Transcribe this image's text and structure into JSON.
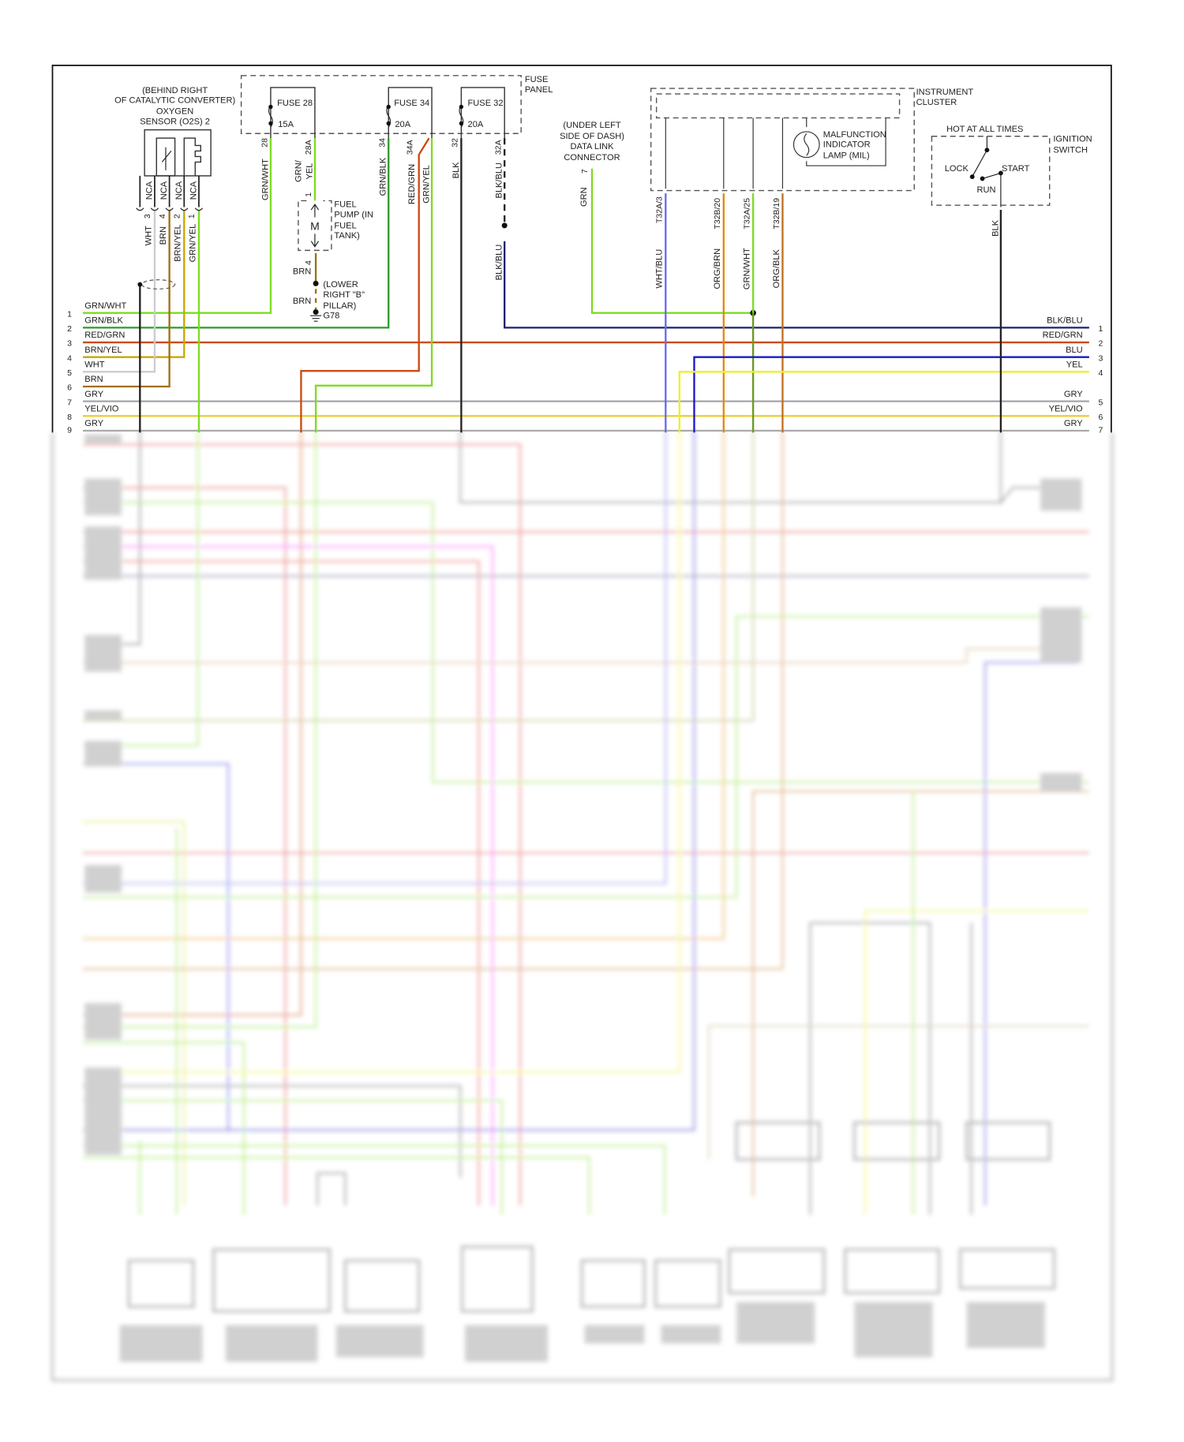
{
  "oxygen_sensor": {
    "location": "(BEHIND RIGHT",
    "location2": "OF CATALYTIC CONVERTER)",
    "name1": "OXYGEN",
    "name2": "SENSOR (O2S) 2",
    "pins": [
      {
        "nca": "NCA",
        "pin": "3",
        "wire": "WHT"
      },
      {
        "nca": "NCA",
        "pin": "4",
        "wire": "BRN"
      },
      {
        "nca": "NCA",
        "pin": "2",
        "wire": "BRN/YEL"
      },
      {
        "nca": "NCA",
        "pin": "1",
        "wire": "GRN/YEL"
      }
    ]
  },
  "fuse_panel": {
    "label1": "FUSE",
    "label2": "PANEL",
    "fuses": [
      {
        "name": "FUSE 28",
        "rating": "15A",
        "in_pin": "28",
        "out_pin": "28A",
        "in_wire": "GRN/WHT",
        "out_wire1": "GRN/",
        "out_wire2": "YEL"
      },
      {
        "name": "FUSE 34",
        "rating": "20A",
        "in_pin": "34",
        "out_pin": "34A",
        "in_wire": "GRN/BLK",
        "out_wire1": "RED/GRN",
        "out_wire2": "GRN/YEL"
      },
      {
        "name": "FUSE 32",
        "rating": "20A",
        "in_pin": "32",
        "out_pin": "32A",
        "in_wire": "BLK",
        "out_wire1": "BLK/BLU",
        "out_wire2": "BLK/BLU"
      }
    ]
  },
  "fuel_pump": {
    "l1": "FUEL",
    "l2": "PUMP (IN",
    "l3": "FUEL",
    "l4": "TANK)",
    "motor": "M",
    "pin_top": "1",
    "pin_bottom": "4",
    "wire1": "BRN",
    "wire2": "BRN",
    "ground_loc1": "(LOWER",
    "ground_loc2": "RIGHT \"B\"",
    "ground_loc3": "PILLAR)",
    "ground": "G78"
  },
  "dlc": {
    "l1": "(UNDER LEFT",
    "l2": "SIDE OF DASH)",
    "l3": "DATA LINK",
    "l4": "CONNECTOR",
    "pin": "7",
    "wire": "GRN"
  },
  "instrument_cluster": {
    "l1": "INSTRUMENT",
    "l2": "CLUSTER",
    "mil1": "MALFUNCTION",
    "mil2": "INDICATOR",
    "mil3": "LAMP (MIL)",
    "terminals": [
      {
        "pin": "T32A/3",
        "wire": "WHT/BLU"
      },
      {
        "pin": "T32B/20",
        "wire": "ORG/BRN"
      },
      {
        "pin": "T32A/25",
        "wire": "GRN/WHT"
      },
      {
        "pin": "T32B/19",
        "wire": "ORG/BLK"
      }
    ]
  },
  "ignition_switch": {
    "hot": "HOT AT ALL TIMES",
    "l1": "IGNITION",
    "l2": "SWITCH",
    "lock": "LOCK",
    "start": "START",
    "run": "RUN",
    "wire": "BLK"
  },
  "left_bus": [
    {
      "num": "1",
      "wire": "GRN/WHT"
    },
    {
      "num": "2",
      "wire": "GRN/BLK"
    },
    {
      "num": "3",
      "wire": "RED/GRN"
    },
    {
      "num": "4",
      "wire": "BRN/YEL"
    },
    {
      "num": "5",
      "wire": "WHT"
    },
    {
      "num": "6",
      "wire": "BRN"
    },
    {
      "num": "7",
      "wire": "GRY"
    },
    {
      "num": "8",
      "wire": "YEL/VIO"
    },
    {
      "num": "9",
      "wire": "GRY"
    }
  ],
  "right_bus": [
    {
      "num": "1",
      "wire": "BLK/BLU"
    },
    {
      "num": "2",
      "wire": "RED/GRN"
    },
    {
      "num": "3",
      "wire": "BLU"
    },
    {
      "num": "4",
      "wire": "YEL"
    },
    {
      "num": "5",
      "wire": "GRY"
    },
    {
      "num": "6",
      "wire": "YEL/VIO"
    },
    {
      "num": "7",
      "wire": "GRY"
    }
  ],
  "colors": {
    "GRN": "#7ddc1f",
    "GRN_BLK": "#2e9a2e",
    "RED_GRN": "#cc4a10",
    "BRN_YEL": "#c9a800",
    "BRN": "#a07010",
    "WHT": "#cccccc",
    "GRY": "#aaaaaa",
    "YEL_VIO": "#f2cc30",
    "BLK_BLU": "#202070",
    "BLU": "#1a1ac8",
    "YEL": "#f0f020",
    "WHT_BLU": "#6a6ae8",
    "ORG_BRN": "#e08a10",
    "ORG_BLK": "#c07020",
    "BLK": "#222222"
  }
}
